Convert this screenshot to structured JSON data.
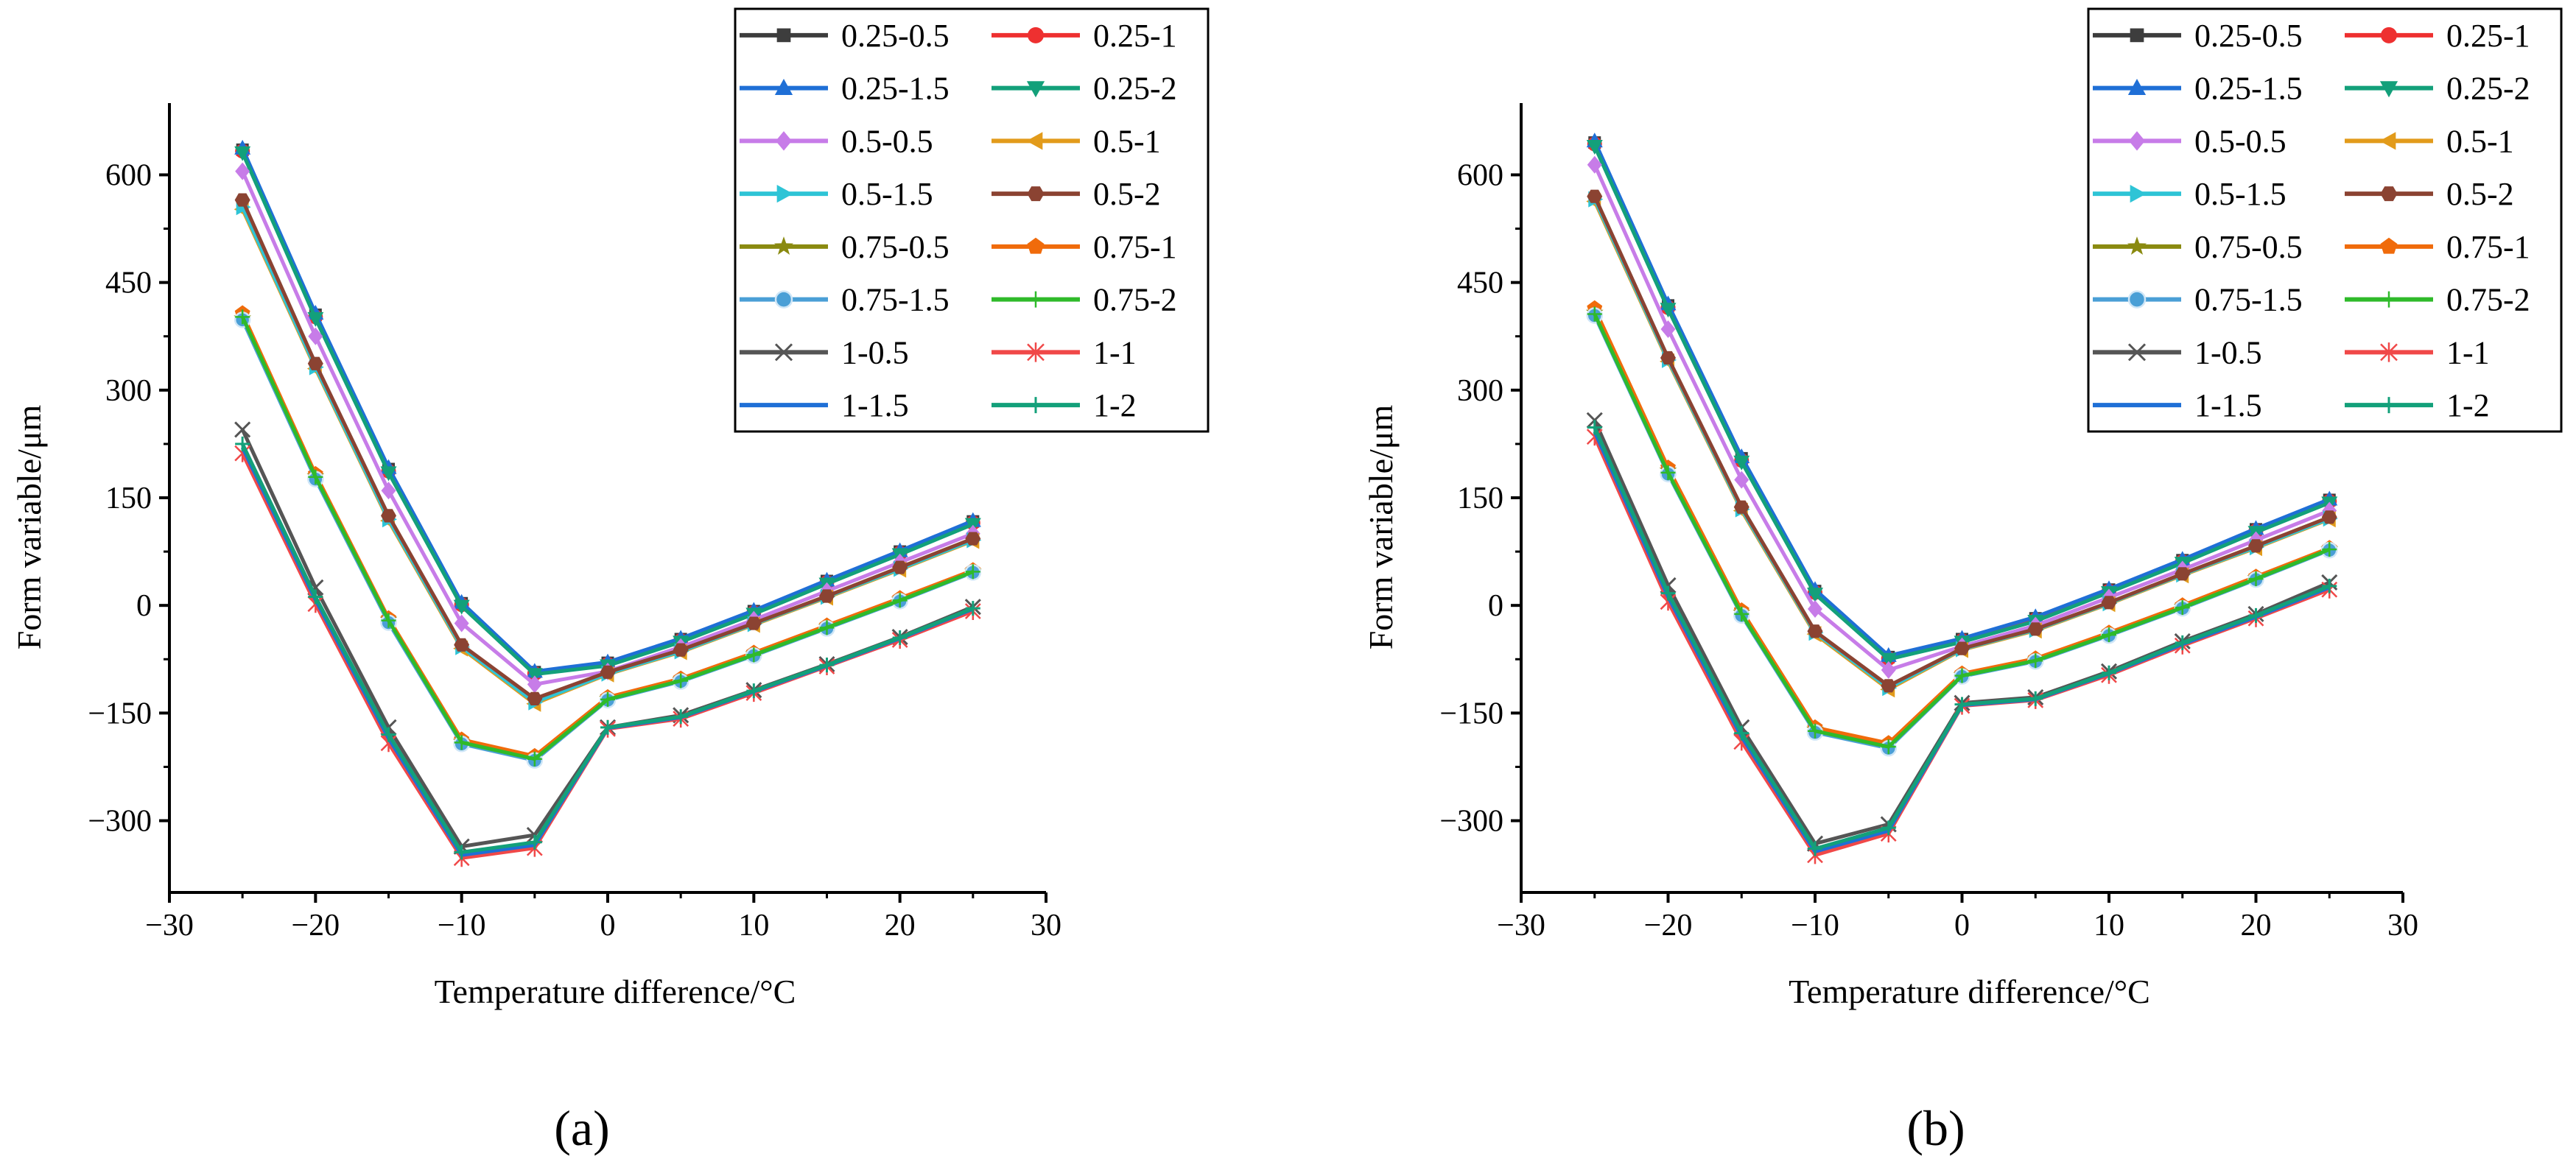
{
  "figure": {
    "panel_labels": [
      "(a)",
      "(b)"
    ]
  },
  "chart_data": [
    {
      "type": "line",
      "panel": "(a)",
      "title": "",
      "xlabel": "Temperature difference/°C",
      "ylabel": "Form variable/μm",
      "xlim": [
        -30,
        30
      ],
      "ylim": [
        -400,
        700
      ],
      "xticks": [
        -30,
        -20,
        -10,
        0,
        10,
        20,
        30
      ],
      "yticks": [
        -300,
        -150,
        0,
        150,
        300,
        450,
        600
      ],
      "x": [
        -25,
        -20,
        -15,
        -10,
        -5,
        0,
        5,
        10,
        15,
        20,
        25
      ],
      "legend_position": "top-right",
      "grid": false,
      "series": [
        {
          "name": "0.25-0.5",
          "marker": "square",
          "color": "#3d3d3d",
          "values": [
            635,
            405,
            190,
            3,
            -93,
            -80,
            -47,
            -8,
            34,
            75,
            117
          ]
        },
        {
          "name": "0.25-1",
          "marker": "circle",
          "color": "#ee3030",
          "values": [
            633,
            402,
            187,
            1,
            -95,
            -82,
            -49,
            -10,
            32,
            73,
            115
          ]
        },
        {
          "name": "0.25-1.5",
          "marker": "triangle-up",
          "color": "#1f6fd6",
          "values": [
            637,
            407,
            192,
            4,
            -92,
            -79,
            -46,
            -7,
            35,
            76,
            118
          ]
        },
        {
          "name": "0.25-2",
          "marker": "triangle-down",
          "color": "#13a07a",
          "values": [
            631,
            400,
            185,
            -1,
            -96,
            -84,
            -51,
            -12,
            30,
            71,
            113
          ]
        },
        {
          "name": "0.5-0.5",
          "marker": "diamond",
          "color": "#c77ce8",
          "values": [
            605,
            375,
            160,
            -25,
            -110,
            -92,
            -58,
            -20,
            20,
            60,
            100
          ]
        },
        {
          "name": "0.5-1",
          "marker": "triangle-left",
          "color": "#e29b1b",
          "values": [
            552,
            330,
            118,
            -60,
            -137,
            -96,
            -65,
            -27,
            11,
            50,
            90
          ]
        },
        {
          "name": "0.5-1.5",
          "marker": "triangle-right",
          "color": "#2ec4d6",
          "values": [
            555,
            332,
            120,
            -58,
            -135,
            -95,
            -64,
            -26,
            12,
            51,
            91
          ]
        },
        {
          "name": "0.5-2",
          "marker": "hexagon",
          "color": "#8b4332",
          "values": [
            565,
            337,
            125,
            -55,
            -130,
            -93,
            -62,
            -25,
            13,
            53,
            93
          ]
        },
        {
          "name": "0.75-0.5",
          "marker": "star",
          "color": "#8a8a10",
          "values": [
            400,
            180,
            -20,
            -190,
            -212,
            -130,
            -104,
            -68,
            -30,
            8,
            47
          ]
        },
        {
          "name": "0.75-1",
          "marker": "pentagon",
          "color": "#f06b0b",
          "values": [
            407,
            183,
            -18,
            -187,
            -210,
            -128,
            -102,
            -66,
            -28,
            10,
            49
          ]
        },
        {
          "name": "0.75-1.5",
          "marker": "sphere",
          "color": "#4a9fd6",
          "values": [
            398,
            176,
            -24,
            -193,
            -216,
            -132,
            -106,
            -70,
            -32,
            6,
            46
          ]
        },
        {
          "name": "0.75-2",
          "marker": "plus",
          "color": "#2fba2a",
          "values": [
            402,
            179,
            -21,
            -191,
            -214,
            -131,
            -105,
            -69,
            -31,
            7,
            47
          ]
        },
        {
          "name": "1-0.5",
          "marker": "x",
          "color": "#555555",
          "values": [
            245,
            25,
            -170,
            -336,
            -320,
            -170,
            -153,
            -118,
            -82,
            -44,
            -2
          ]
        },
        {
          "name": "1-1",
          "marker": "asterisk",
          "color": "#f04848",
          "values": [
            212,
            2,
            -192,
            -352,
            -338,
            -172,
            -158,
            -122,
            -85,
            -48,
            -8
          ]
        },
        {
          "name": "1-1.5",
          "marker": "none",
          "color": "#1f6fd6",
          "values": [
            220,
            8,
            -185,
            -348,
            -334,
            -171,
            -156,
            -120,
            -84,
            -46,
            -5
          ]
        },
        {
          "name": "1-2",
          "marker": "cross",
          "color": "#13a07a",
          "values": [
            225,
            12,
            -180,
            -344,
            -330,
            -170,
            -155,
            -119,
            -83,
            -45,
            -4
          ]
        }
      ]
    },
    {
      "type": "line",
      "panel": "(b)",
      "title": "",
      "xlabel": "Temperature difference/°C",
      "ylabel": "Form variable/μm",
      "xlim": [
        -30,
        30
      ],
      "ylim": [
        -400,
        700
      ],
      "xticks": [
        -30,
        -20,
        -10,
        0,
        10,
        20,
        30
      ],
      "yticks": [
        -300,
        -150,
        0,
        150,
        300,
        450,
        600
      ],
      "x": [
        -25,
        -20,
        -15,
        -10,
        -5,
        0,
        5,
        10,
        15,
        20,
        25
      ],
      "legend_position": "top-right",
      "grid": false,
      "series": [
        {
          "name": "0.25-0.5",
          "marker": "square",
          "color": "#3d3d3d",
          "values": [
            645,
            418,
            205,
            20,
            -72,
            -47,
            -18,
            22,
            63,
            106,
            147
          ]
        },
        {
          "name": "0.25-1",
          "marker": "circle",
          "color": "#ee3030",
          "values": [
            643,
            415,
            202,
            18,
            -74,
            -49,
            -20,
            20,
            61,
            104,
            145
          ]
        },
        {
          "name": "0.25-1.5",
          "marker": "triangle-up",
          "color": "#1f6fd6",
          "values": [
            647,
            420,
            207,
            22,
            -70,
            -46,
            -16,
            23,
            64,
            107,
            148
          ]
        },
        {
          "name": "0.25-2",
          "marker": "triangle-down",
          "color": "#13a07a",
          "values": [
            640,
            413,
            200,
            16,
            -75,
            -51,
            -22,
            18,
            59,
            102,
            143
          ]
        },
        {
          "name": "0.5-0.5",
          "marker": "diamond",
          "color": "#c77ce8",
          "values": [
            614,
            385,
            175,
            -5,
            -90,
            -57,
            -28,
            11,
            50,
            91,
            132
          ]
        },
        {
          "name": "0.5-1",
          "marker": "triangle-left",
          "color": "#e29b1b",
          "values": [
            563,
            340,
            132,
            -40,
            -117,
            -62,
            -35,
            2,
            42,
            80,
            120
          ]
        },
        {
          "name": "0.5-1.5",
          "marker": "triangle-right",
          "color": "#2ec4d6",
          "values": [
            566,
            342,
            134,
            -38,
            -115,
            -61,
            -34,
            3,
            43,
            81,
            121
          ]
        },
        {
          "name": "0.5-2",
          "marker": "hexagon",
          "color": "#8b4332",
          "values": [
            570,
            345,
            137,
            -36,
            -112,
            -60,
            -33,
            4,
            44,
            83,
            123
          ]
        },
        {
          "name": "0.75-0.5",
          "marker": "star",
          "color": "#8a8a10",
          "values": [
            408,
            188,
            -10,
            -173,
            -195,
            -97,
            -76,
            -40,
            -2,
            38,
            78
          ]
        },
        {
          "name": "0.75-1",
          "marker": "pentagon",
          "color": "#f06b0b",
          "values": [
            414,
            192,
            -7,
            -170,
            -192,
            -95,
            -74,
            -38,
            0,
            40,
            80
          ]
        },
        {
          "name": "0.75-1.5",
          "marker": "sphere",
          "color": "#4a9fd6",
          "values": [
            404,
            183,
            -14,
            -177,
            -199,
            -99,
            -78,
            -42,
            -4,
            36,
            77
          ]
        },
        {
          "name": "0.75-2",
          "marker": "plus",
          "color": "#2fba2a",
          "values": [
            406,
            185,
            -12,
            -175,
            -197,
            -98,
            -77,
            -41,
            -3,
            37,
            78
          ]
        },
        {
          "name": "1-0.5",
          "marker": "x",
          "color": "#555555",
          "values": [
            258,
            28,
            -170,
            -332,
            -305,
            -136,
            -128,
            -92,
            -50,
            -12,
            32
          ]
        },
        {
          "name": "1-1",
          "marker": "asterisk",
          "color": "#f04848",
          "values": [
            235,
            5,
            -190,
            -348,
            -318,
            -140,
            -132,
            -97,
            -56,
            -18,
            22
          ]
        },
        {
          "name": "1-1.5",
          "marker": "none",
          "color": "#1f6fd6",
          "values": [
            242,
            12,
            -183,
            -343,
            -314,
            -139,
            -131,
            -95,
            -54,
            -16,
            25
          ]
        },
        {
          "name": "1-2",
          "marker": "cross",
          "color": "#13a07a",
          "values": [
            248,
            17,
            -178,
            -339,
            -310,
            -138,
            -130,
            -94,
            -52,
            -14,
            27
          ]
        }
      ]
    }
  ]
}
